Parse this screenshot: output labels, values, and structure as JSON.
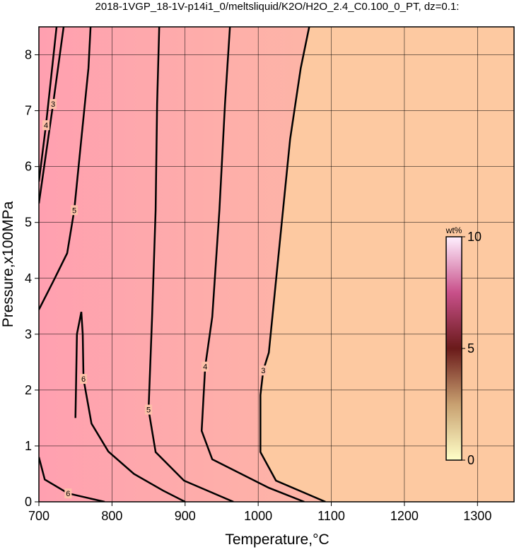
{
  "chart_data": {
    "type": "contour",
    "title": "2018-1VGP_18-1V-p14i1_0/meltsliquid/K2O/H2O_2.4_C0.100_0_PT, dz=0.1:",
    "x_label": "Temperature,°C",
    "y_label": "Pressure,x100MPa",
    "xlim": [
      700,
      1350
    ],
    "ylim": [
      0,
      8.5
    ],
    "xticks": [
      700,
      800,
      900,
      1000,
      1100,
      1200,
      1300
    ],
    "yticks": [
      0,
      1,
      2,
      3,
      4,
      5,
      6,
      7,
      8
    ],
    "grid": true,
    "contours": [
      {
        "level": 3,
        "x": [
          1069.8,
          1058.2,
          1043.7,
          1029.1,
          1014.6,
          1006.9,
          1003,
          1003,
          1024.3,
          1092
        ],
        "y": [
          8.5,
          7.76,
          6.49,
          4.58,
          2.67,
          2.35,
          1.91,
          0.89,
          0.38,
          0
        ]
      },
      {
        "level": 4,
        "x": [
          961.4,
          954.6,
          946.9,
          937.2,
          927.5,
          922.7,
          937.2,
          1014.6,
          1063
        ],
        "y": [
          8.5,
          7.12,
          5.22,
          3.31,
          2.42,
          1.27,
          0.76,
          0.25,
          0
        ]
      },
      {
        "level": 5,
        "x": [
          864.6,
          861.7,
          859.7,
          854.9,
          850,
          859.7,
          898.5,
          966.2
        ],
        "y": [
          8.5,
          7.12,
          5.22,
          3.31,
          1.65,
          0.89,
          0.38,
          0
        ]
      },
      {
        "level": 5,
        "x": [
          770.7,
          767.8,
          758,
          748.4,
          738.7,
          719.4,
          700
        ],
        "y": [
          8.5,
          7.76,
          6.49,
          5.22,
          4.45,
          3.94,
          3.44
        ]
      },
      {
        "level": 6,
        "x": [
          750,
          751,
          752,
          758,
          760,
          761,
          772,
          795,
          830,
          870,
          900
        ],
        "y": [
          1.5,
          2.2,
          3.0,
          3.4,
          3.0,
          2.2,
          1.4,
          0.9,
          0.5,
          0.2,
          0
        ]
      },
      {
        "level": 6,
        "x": [
          700,
          708,
          740,
          790
        ],
        "y": [
          0.8,
          0.4,
          0.15,
          0
        ]
      },
      {
        "level": 3,
        "x": [
          733.9,
          719.4,
          700
        ],
        "y": [
          8.5,
          7.12,
          5.34
        ]
      },
      {
        "level": 4,
        "x": [
          724.2,
          709.7,
          700
        ],
        "y": [
          8.5,
          6.74,
          5.73
        ]
      }
    ],
    "colorbar": {
      "label": "wt%",
      "lim": [
        0,
        10
      ],
      "ticks": [
        0,
        5,
        10
      ]
    }
  }
}
